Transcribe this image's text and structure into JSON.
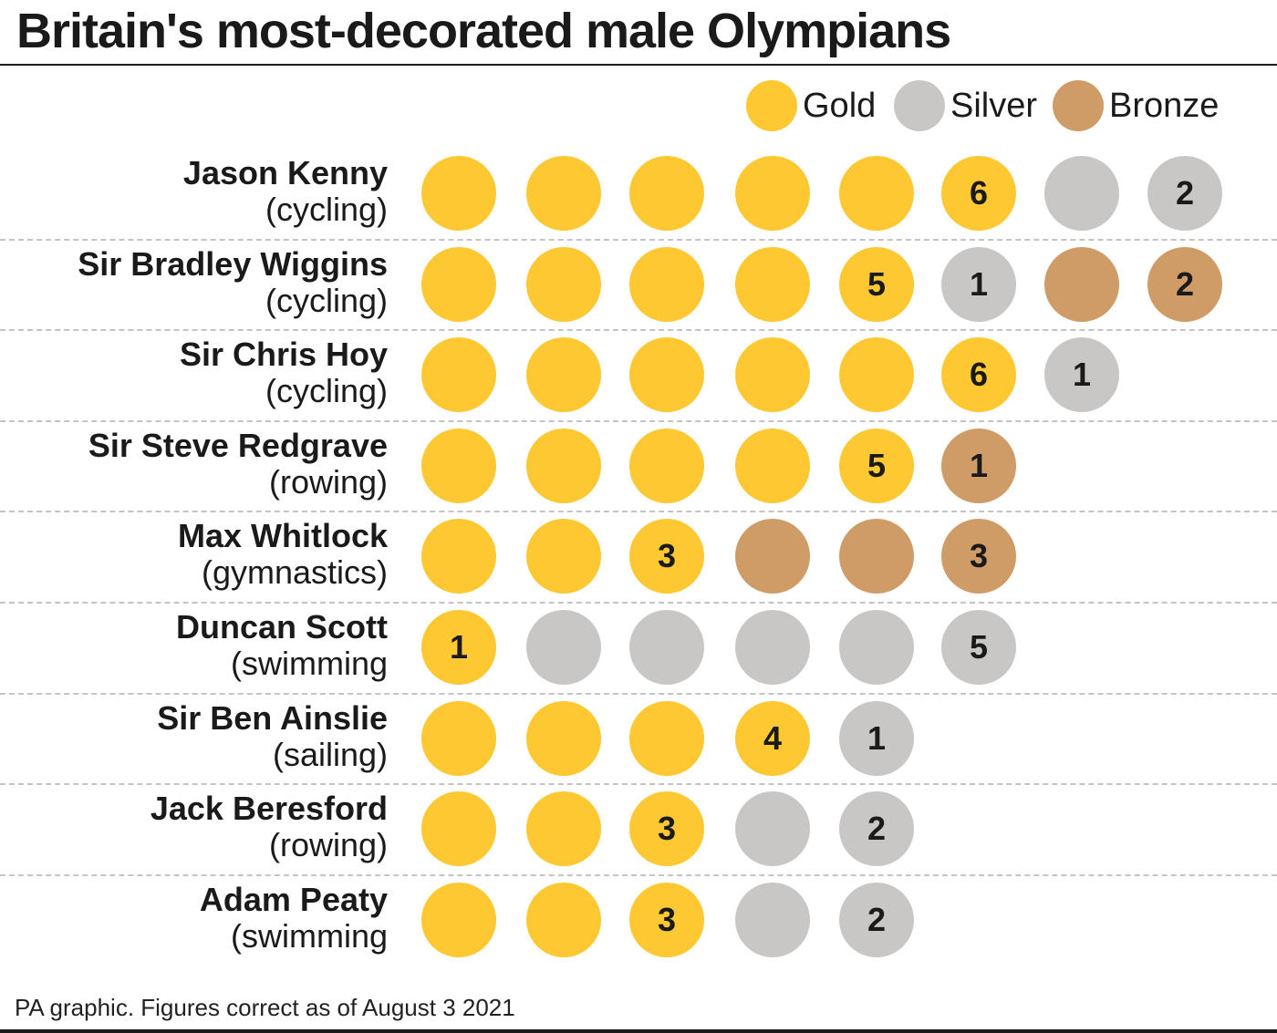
{
  "header": {
    "title": "Britain's most-decorated male Olympians"
  },
  "colors": {
    "gold": "#fdc832",
    "silver": "#c8c7c6",
    "bronze": "#cf9b66"
  },
  "legend": [
    {
      "key": "gold",
      "label": "Gold"
    },
    {
      "key": "silver",
      "label": "Silver"
    },
    {
      "key": "bronze",
      "label": "Bronze"
    }
  ],
  "chart_data": {
    "type": "table",
    "title": "Britain's most-decorated male Olympians",
    "legend_position": "top-right",
    "series": [
      "Gold",
      "Silver",
      "Bronze"
    ],
    "rows": [
      {
        "name": "Jason Kenny",
        "sport": "(cycling)",
        "gold": 6,
        "silver": 2,
        "bronze": 0
      },
      {
        "name": "Sir Bradley Wiggins",
        "sport": "(cycling)",
        "gold": 5,
        "silver": 1,
        "bronze": 2
      },
      {
        "name": "Sir Chris Hoy",
        "sport": "(cycling)",
        "gold": 6,
        "silver": 1,
        "bronze": 0
      },
      {
        "name": "Sir Steve Redgrave",
        "sport": "(rowing)",
        "gold": 5,
        "silver": 0,
        "bronze": 1
      },
      {
        "name": "Max Whitlock",
        "sport": "(gymnastics)",
        "gold": 3,
        "silver": 0,
        "bronze": 3
      },
      {
        "name": "Duncan Scott",
        "sport": "(swimming",
        "gold": 1,
        "silver": 5,
        "bronze": 0
      },
      {
        "name": "Sir Ben Ainslie",
        "sport": "(sailing)",
        "gold": 4,
        "silver": 1,
        "bronze": 0
      },
      {
        "name": "Jack Beresford",
        "sport": "(rowing)",
        "gold": 3,
        "silver": 2,
        "bronze": 0
      },
      {
        "name": "Adam Peaty",
        "sport": "(swimming",
        "gold": 3,
        "silver": 2,
        "bronze": 0
      }
    ]
  },
  "footer": {
    "source": "PA graphic. Figures correct as of August 3 2021"
  }
}
